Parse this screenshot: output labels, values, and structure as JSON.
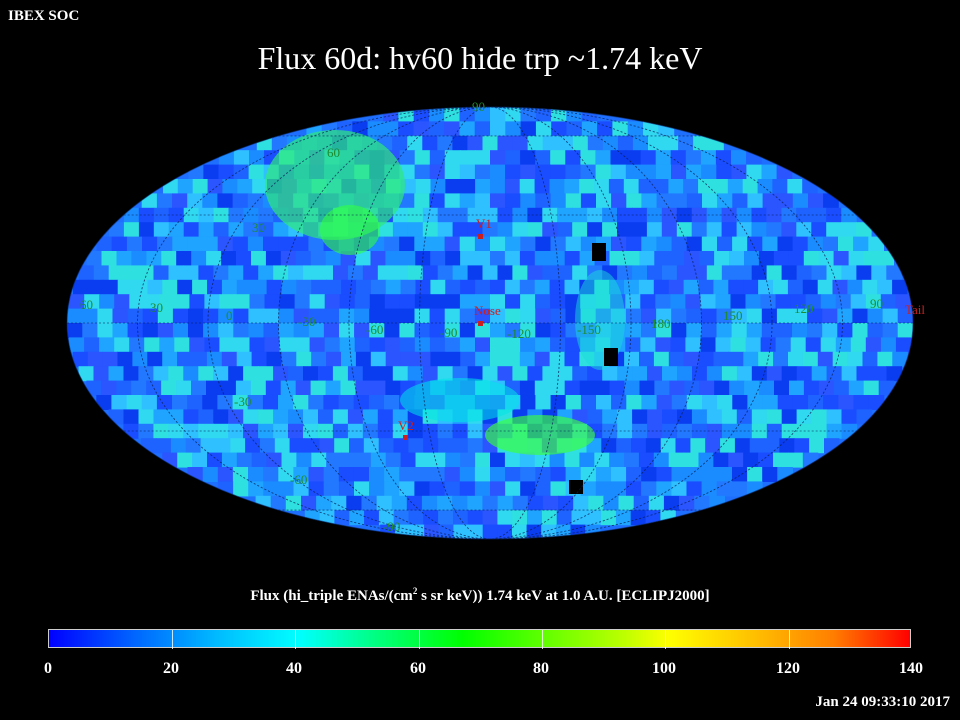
{
  "header": {
    "corner_label": "IBEX SOC",
    "title": "Flux   60d: hv60 hide trp ~1.74 keV"
  },
  "map": {
    "grid_labels": {
      "lat_north_pole": "90",
      "lat_60": "60",
      "lat_30": "30",
      "lat_minus_30": "-30",
      "lat_minus_60": "-60",
      "lat_minus_90": "-90",
      "equator_lon": [
        "60",
        "30",
        "0",
        "-30",
        "-60",
        "-90",
        "-120",
        "-150",
        "180",
        "150",
        "120",
        "90"
      ]
    },
    "markers": {
      "v1": "V1",
      "nose": "Nose",
      "v2": "V2",
      "tail": "Tail"
    },
    "colors": {
      "background": "#000000",
      "grid_label": "#008000",
      "marker": "#cc2020"
    }
  },
  "colorbar": {
    "title_prefix": "Flux (hi_triple ENAs/(cm",
    "title_sup": "2",
    "title_suffix": " s sr keV))  1.74 keV at 1.0 A.U. [ECLIPJ2000]",
    "ticks": [
      "0",
      "20",
      "40",
      "60",
      "80",
      "100",
      "120",
      "140"
    ],
    "range": [
      0,
      140
    ]
  },
  "footer": {
    "timestamp": "Jan 24 09:33:10 2017"
  }
}
